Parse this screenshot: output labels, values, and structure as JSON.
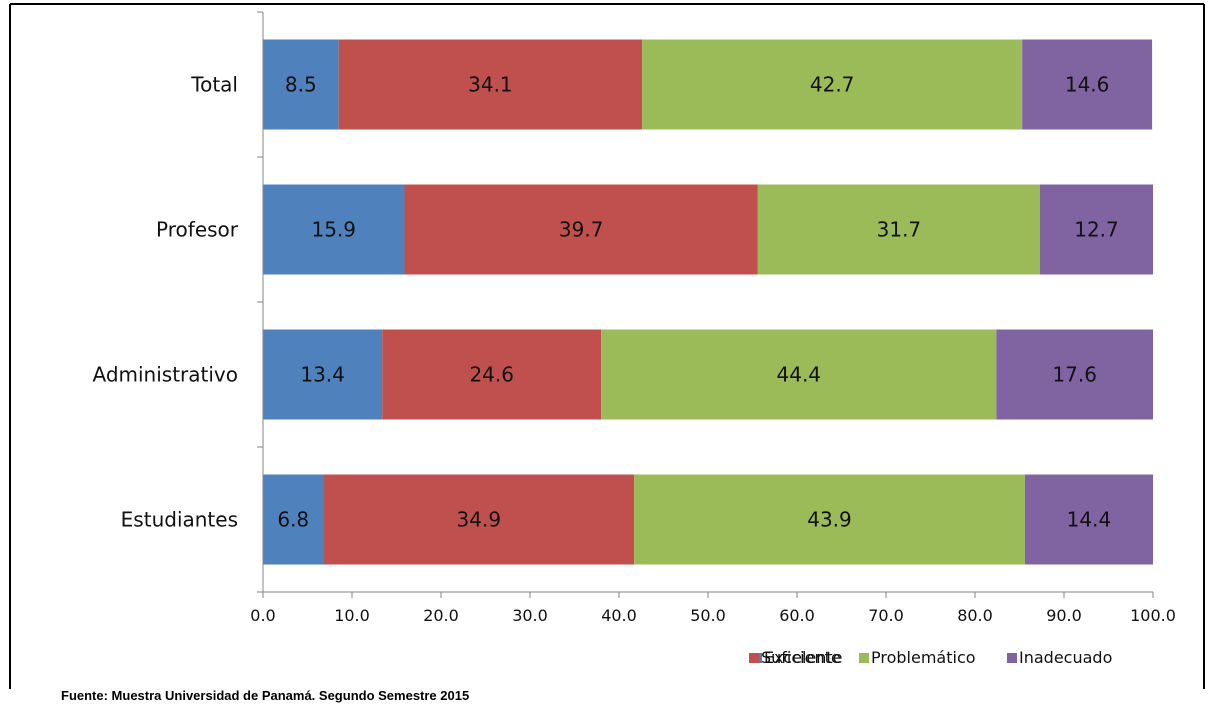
{
  "source_note": "Fuente: Muestra Universidad de Panamá. Segundo Semestre 2015",
  "chart_data": {
    "type": "bar",
    "orientation": "horizontal",
    "stacked": true,
    "categories": [
      "Total",
      "Profesor",
      "Administrativo",
      "Estudiantes"
    ],
    "series": [
      {
        "name": "Excelente",
        "color": "#4f81bd",
        "values": [
          8.5,
          15.9,
          13.4,
          6.8
        ]
      },
      {
        "name": "Suficiente",
        "color": "#c0504d",
        "values": [
          34.1,
          39.7,
          24.6,
          34.9
        ]
      },
      {
        "name": "Problemático",
        "color": "#9bbb59",
        "values": [
          42.7,
          31.7,
          44.4,
          43.9
        ]
      },
      {
        "name": "Inadecuado",
        "color": "#8064a2",
        "values": [
          14.6,
          12.7,
          17.6,
          14.4
        ]
      }
    ],
    "xlim": [
      0,
      100
    ],
    "xticks": [
      "0.0",
      "10.0",
      "20.0",
      "30.0",
      "40.0",
      "50.0",
      "60.0",
      "70.0",
      "80.0",
      "90.0",
      "100.0"
    ],
    "grid": false,
    "legend_position": "bottom-right"
  }
}
